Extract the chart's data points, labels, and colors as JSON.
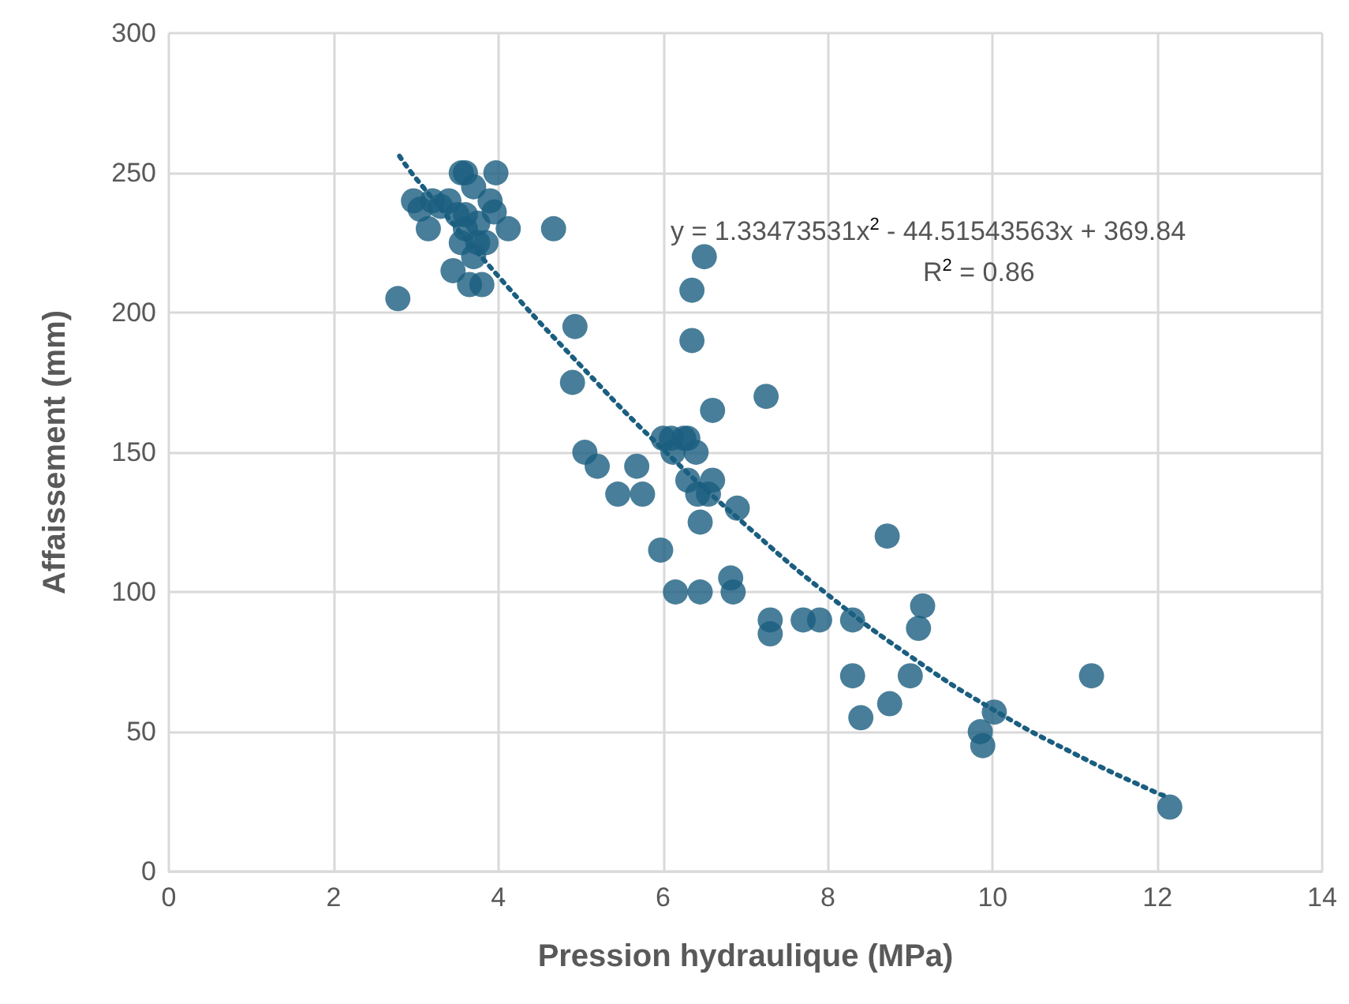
{
  "chart_data": {
    "type": "scatter",
    "xlabel": "Pression hydraulique (MPa)",
    "ylabel": "Affaissement (mm)",
    "annotations": [
      "y = 1.33473531x$^{2}$ - 44.51543563x + 369.84",
      "R$^{2}$ = 0.86"
    ],
    "xlim": [
      0,
      14
    ],
    "xticks": [
      0,
      2,
      4,
      6,
      8,
      10,
      12,
      14
    ],
    "ylim": [
      0,
      300
    ],
    "yticks": [
      0,
      50,
      100,
      150,
      200,
      250,
      300
    ],
    "grid": true,
    "marker": "circle",
    "series": [
      {
        "color": "#1a5e80",
        "x": [
          2.78,
          2.97,
          3.05,
          3.15,
          3.2,
          3.3,
          3.4,
          3.45,
          3.5,
          3.55,
          3.55,
          3.6,
          3.6,
          3.65,
          3.7,
          3.7,
          3.75,
          3.8,
          3.85,
          3.9,
          3.95,
          3.97,
          4.12,
          3.6,
          3.75,
          4.67,
          4.93,
          4.9,
          5.05,
          5.2,
          5.45,
          5.68,
          5.75,
          5.97,
          6.1,
          6.15,
          6.0,
          6.12,
          6.25,
          6.3,
          6.3,
          6.35,
          6.35,
          6.4,
          6.42,
          6.45,
          6.45,
          6.5,
          6.55,
          6.6,
          6.6,
          6.82,
          6.85,
          6.9,
          7.25,
          7.3,
          7.3,
          7.7,
          7.9,
          8.3,
          8.3,
          8.4,
          8.75,
          8.72,
          9.0,
          9.1,
          9.15,
          9.85,
          9.88,
          10.02,
          11.2,
          12.15
        ],
        "values": [
          205,
          240,
          237,
          230,
          240,
          238,
          240,
          215,
          235,
          225,
          250,
          250,
          230,
          210,
          245,
          220,
          225,
          210,
          225,
          240,
          236,
          250,
          230,
          235,
          232,
          230,
          195,
          175,
          150,
          145,
          135,
          145,
          135,
          115,
          155,
          100,
          155,
          150,
          155,
          155,
          140,
          208,
          190,
          150,
          135,
          125,
          100,
          220,
          135,
          140,
          165,
          105,
          100,
          130,
          170,
          90,
          85,
          90,
          90,
          90,
          70,
          55,
          60,
          120,
          70,
          87,
          95,
          50,
          45,
          57,
          70,
          23
        ]
      },
      {
        "type": "line",
        "color": "#1a5e80",
        "line_style": "dotted",
        "marker": "none",
        "x": [
          2.8,
          3,
          4,
          5,
          6,
          7,
          8,
          9,
          10,
          11,
          12,
          12.1
        ],
        "values": [
          256,
          248,
          213,
          181,
          151,
          124,
          99,
          77,
          58,
          42,
          28,
          27
        ]
      }
    ]
  }
}
